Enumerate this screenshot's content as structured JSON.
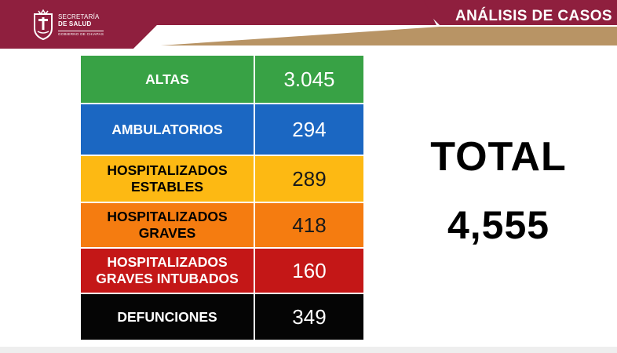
{
  "header": {
    "logo_line1": "SECRETARÍA",
    "logo_line2": "DE SALUD",
    "logo_line3": "GOBIERNO DE CHIAPAS",
    "title": "ANÁLISIS DE CASOS",
    "colors": {
      "primary": "#8f1f3e",
      "accent": "#b89465"
    }
  },
  "cases": [
    {
      "label": "ALTAS",
      "value": "3.045",
      "bg": "#38a245",
      "fg": "#ffffff"
    },
    {
      "label": "AMBULATORIOS",
      "value": "294",
      "bg": "#1b67c2",
      "fg": "#ffffff"
    },
    {
      "label": "HOSPITALIZADOS ESTABLES",
      "value": "289",
      "bg": "#fdb913",
      "fg": "#000000"
    },
    {
      "label": "HOSPITALIZADOS GRAVES",
      "value": "418",
      "bg": "#f57c10",
      "fg": "#000000"
    },
    {
      "label": "HOSPITALIZADOS GRAVES INTUBADOS",
      "value": "160",
      "bg": "#c41717",
      "fg": "#ffffff"
    },
    {
      "label": "DEFUNCIONES",
      "value": "349",
      "bg": "#050505",
      "fg": "#ffffff"
    }
  ],
  "summary": {
    "label": "TOTAL",
    "value": "4,555"
  }
}
